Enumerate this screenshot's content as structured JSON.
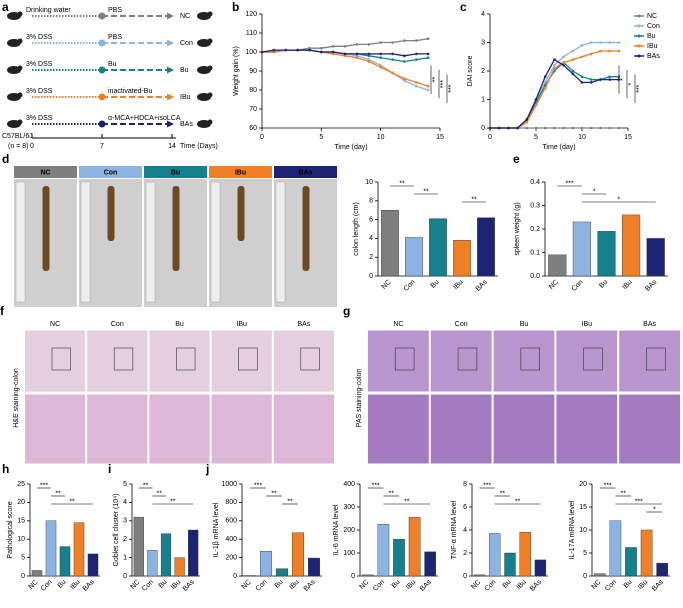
{
  "schematic": {
    "panel": "a",
    "strain": "C57BL/6J",
    "n": "(n = 8)",
    "days": [
      0,
      7,
      14
    ],
    "time_label": "Time (Days)",
    "rows": [
      {
        "start": "Drinking water",
        "treatment": "PBS",
        "group": "NC",
        "color": "#7f7f7f"
      },
      {
        "start": "3% DSS",
        "treatment": "PBS",
        "group": "Con",
        "color": "#8db3e2"
      },
      {
        "start": "3% DSS",
        "treatment": "Bu",
        "group": "Bu",
        "color": "#17808e"
      },
      {
        "start": "3% DSS",
        "treatment": "inactivated-Bu",
        "group": "IBu",
        "color": "#f07f26"
      },
      {
        "start": "3% DSS",
        "treatment": "α-MCA+HDCA+isoLCA",
        "group": "BAs",
        "color": "#1c2473"
      }
    ]
  },
  "colon_photos": {
    "panel": "d",
    "groups": [
      "NC",
      "Con",
      "Bu",
      "IBu",
      "BAs"
    ],
    "colors": [
      "#7f7f7f",
      "#8db3e2",
      "#17808e",
      "#f07f26",
      "#1c2473"
    ]
  },
  "he_staining": {
    "panel": "f",
    "label": "H&E staining-colon",
    "groups": [
      "NC",
      "Con",
      "Bu",
      "IBu",
      "BAs"
    ]
  },
  "pas_staining": {
    "panel": "g",
    "label": "PAS staining-colon",
    "groups": [
      "NC",
      "Con",
      "Bu",
      "IBu",
      "BAs"
    ]
  },
  "chart_data": [
    {
      "type": "line",
      "panel": "b",
      "x_label": "Time (day)",
      "y_label": "Weight gain (%)",
      "x": [
        0,
        1,
        2,
        3,
        4,
        5,
        6,
        7,
        8,
        9,
        10,
        11,
        12,
        13,
        14
      ],
      "xlim": [
        0,
        15
      ],
      "xticks": [
        0,
        5,
        10,
        15
      ],
      "ylim": [
        60,
        120
      ],
      "yticks": [
        60,
        70,
        80,
        90,
        100,
        110,
        120
      ],
      "series": [
        {
          "color": "#7f7f7f",
          "values": [
            100,
            100,
            101,
            101,
            102,
            102,
            103,
            103,
            104,
            104,
            105,
            105,
            106,
            106,
            107
          ]
        },
        {
          "color": "#8db3e2",
          "values": [
            100,
            100,
            101,
            101,
            101,
            100,
            100,
            99,
            98,
            96,
            93,
            89,
            85,
            82,
            80
          ]
        },
        {
          "color": "#17808e",
          "values": [
            100,
            100,
            101,
            101,
            101,
            100,
            100,
            99,
            99,
            98,
            97,
            96,
            95,
            96,
            97
          ]
        },
        {
          "color": "#f07f26",
          "values": [
            100,
            100,
            101,
            101,
            101,
            100,
            99,
            98,
            97,
            95,
            92,
            89,
            86,
            84,
            82
          ]
        },
        {
          "color": "#1c2473",
          "values": [
            100,
            101,
            101,
            101,
            101,
            100,
            100,
            99,
            99,
            99,
            99,
            99,
            98,
            99,
            99
          ]
        }
      ],
      "significance": [
        "**",
        "***",
        "***"
      ]
    },
    {
      "type": "line",
      "panel": "c",
      "x_label": "Time (day)",
      "y_label": "DAI score",
      "legend": true,
      "x": [
        0,
        1,
        2,
        3,
        4,
        5,
        6,
        7,
        8,
        9,
        10,
        11,
        12,
        13,
        14
      ],
      "xlim": [
        0,
        15
      ],
      "xticks": [
        0,
        5,
        10,
        15
      ],
      "ylim": [
        0,
        4
      ],
      "yticks": [
        0,
        1,
        2,
        3,
        4
      ],
      "series": [
        {
          "name": "NC",
          "color": "#7f7f7f",
          "values": [
            0,
            0,
            0,
            0,
            0,
            0,
            0,
            0,
            0,
            0,
            0,
            0,
            0,
            0,
            0
          ]
        },
        {
          "name": "Con",
          "color": "#8db3e2",
          "values": [
            0,
            0,
            0,
            0,
            0.3,
            1.0,
            1.6,
            2.2,
            2.5,
            2.7,
            2.9,
            3.0,
            3.0,
            3.0,
            3.0
          ]
        },
        {
          "name": "Bu",
          "color": "#17808e",
          "values": [
            0,
            0,
            0,
            0,
            0.3,
            0.9,
            1.5,
            2.0,
            2.3,
            2.0,
            1.8,
            1.7,
            1.7,
            1.8,
            1.8
          ]
        },
        {
          "name": "IBu",
          "color": "#f07f26",
          "values": [
            0,
            0,
            0,
            0,
            0.2,
            0.8,
            1.4,
            2.1,
            2.3,
            2.4,
            2.5,
            2.6,
            2.7,
            2.7,
            2.7
          ]
        },
        {
          "name": "BAs",
          "color": "#1c2473",
          "values": [
            0,
            0,
            0,
            0,
            0.3,
            1.0,
            1.8,
            2.4,
            2.2,
            1.9,
            1.6,
            1.6,
            1.7,
            1.7,
            1.7
          ]
        }
      ],
      "significance": [
        "*",
        "*",
        "***"
      ]
    },
    {
      "type": "bar",
      "y_label": "colon length (cm)",
      "categories": [
        "NC",
        "Con",
        "Bu",
        "IBu",
        "BAs"
      ],
      "values": [
        7.0,
        4.1,
        6.1,
        3.8,
        6.2
      ],
      "colors": [
        "#7f7f7f",
        "#8db3e2",
        "#17808e",
        "#f07f26",
        "#1c2473"
      ],
      "ylim": [
        0,
        10
      ],
      "yticks": [
        0,
        2,
        4,
        6,
        8,
        10
      ],
      "significance": [
        {
          "groups": [
            "NC",
            "Con"
          ],
          "label": "**"
        },
        {
          "groups": [
            "Con",
            "Bu"
          ],
          "label": "**"
        },
        {
          "groups": [
            "IBu",
            "BAs"
          ],
          "label": "**"
        }
      ]
    },
    {
      "type": "bar",
      "panel": "e",
      "y_label": "spleen weight (g)",
      "categories": [
        "NC",
        "Con",
        "Bu",
        "IBu",
        "BAs"
      ],
      "values": [
        0.09,
        0.23,
        0.19,
        0.26,
        0.16
      ],
      "colors": [
        "#7f7f7f",
        "#8db3e2",
        "#17808e",
        "#f07f26",
        "#1c2473"
      ],
      "ylim": [
        0,
        0.4
      ],
      "yticks": [
        {
          "value": 0,
          "label": "0.0"
        },
        0.1,
        0.2,
        0.3,
        0.4
      ],
      "significance": [
        {
          "groups": [
            "NC",
            "Con"
          ],
          "label": "***"
        },
        {
          "groups": [
            "Con",
            "Bu"
          ],
          "label": "*"
        },
        {
          "groups": [
            "Con",
            "BAs"
          ],
          "label": "*"
        }
      ]
    },
    {
      "type": "bar",
      "panel": "h",
      "y_label": "Pathological score",
      "categories": [
        "NC",
        "Con",
        "Bu",
        "IBu",
        "BAs"
      ],
      "values": [
        1.5,
        15,
        8,
        14.5,
        6
      ],
      "colors": [
        "#7f7f7f",
        "#8db3e2",
        "#17808e",
        "#f07f26",
        "#1c2473"
      ],
      "ylim": [
        0,
        25
      ],
      "yticks": [
        0,
        5,
        10,
        15,
        20,
        25
      ],
      "significance": [
        {
          "groups": [
            "NC",
            "Con"
          ],
          "label": "***"
        },
        {
          "groups": [
            "Con",
            "Bu"
          ],
          "label": "**"
        },
        {
          "groups": [
            "Con",
            "BAs"
          ],
          "label": "**"
        }
      ]
    },
    {
      "type": "bar",
      "panel": "i",
      "y_label": "Goblet cell cluster (10⁴)",
      "categories": [
        "NC",
        "Con",
        "Bu",
        "IBu",
        "BAs"
      ],
      "values": [
        3.2,
        1.4,
        2.3,
        1.0,
        2.5
      ],
      "colors": [
        "#7f7f7f",
        "#8db3e2",
        "#17808e",
        "#f07f26",
        "#1c2473"
      ],
      "ylim": [
        0,
        5
      ],
      "yticks": [
        0,
        1,
        2,
        3,
        4,
        5
      ],
      "significance": [
        {
          "groups": [
            "NC",
            "Con"
          ],
          "label": "**"
        },
        {
          "groups": [
            "Con",
            "Bu"
          ],
          "label": "**"
        },
        {
          "groups": [
            "Con",
            "BAs"
          ],
          "label": "**"
        }
      ]
    },
    {
      "type": "bar",
      "panel": "j",
      "y_label": "IL-1β mRNA level",
      "categories": [
        "NC",
        "Con",
        "Bu",
        "IBu",
        "BAs"
      ],
      "values": [
        5,
        270,
        80,
        470,
        195
      ],
      "colors": [
        "#7f7f7f",
        "#8db3e2",
        "#17808e",
        "#f07f26",
        "#1c2473"
      ],
      "ylim": [
        0,
        1000
      ],
      "yticks": [
        0,
        200,
        400,
        600,
        800,
        1000
      ],
      "significance": [
        {
          "groups": [
            "NC",
            "Con"
          ],
          "label": "***"
        },
        {
          "groups": [
            "Con",
            "Bu"
          ],
          "label": "**"
        },
        {
          "groups": [
            "Bu",
            "IBu"
          ],
          "label": "**"
        }
      ]
    },
    {
      "type": "bar",
      "y_label": "IL-6 mRNA level",
      "categories": [
        "NC",
        "Con",
        "Bu",
        "IBu",
        "BAs"
      ],
      "values": [
        5,
        225,
        160,
        255,
        105
      ],
      "colors": [
        "#7f7f7f",
        "#8db3e2",
        "#17808e",
        "#f07f26",
        "#1c2473"
      ],
      "ylim": [
        0,
        400
      ],
      "yticks": [
        0,
        100,
        200,
        300,
        400
      ],
      "significance": [
        {
          "groups": [
            "NC",
            "Con"
          ],
          "label": "***"
        },
        {
          "groups": [
            "Con",
            "Bu"
          ],
          "label": "**"
        },
        {
          "groups": [
            "Con",
            "BAs"
          ],
          "label": "**"
        }
      ]
    },
    {
      "type": "bar",
      "y_label": "TNF-α mRNA level",
      "categories": [
        "NC",
        "Con",
        "Bu",
        "IBu",
        "BAs"
      ],
      "values": [
        0.1,
        3.7,
        2.0,
        3.8,
        1.4
      ],
      "colors": [
        "#7f7f7f",
        "#8db3e2",
        "#17808e",
        "#f07f26",
        "#1c2473"
      ],
      "ylim": [
        0,
        8
      ],
      "yticks": [
        0,
        2,
        4,
        6,
        8
      ],
      "significance": [
        {
          "groups": [
            "NC",
            "Con"
          ],
          "label": "***"
        },
        {
          "groups": [
            "Con",
            "Bu"
          ],
          "label": "**"
        },
        {
          "groups": [
            "Con",
            "BAs"
          ],
          "label": "**"
        }
      ]
    },
    {
      "type": "bar",
      "y_label": "IL-17A mRNA level",
      "categories": [
        "NC",
        "Con",
        "Bu",
        "IBu",
        "BAs"
      ],
      "values": [
        0.5,
        12,
        6.2,
        10,
        2.8
      ],
      "colors": [
        "#7f7f7f",
        "#8db3e2",
        "#17808e",
        "#f07f26",
        "#1c2473"
      ],
      "ylim": [
        0,
        20
      ],
      "yticks": [
        0,
        5,
        10,
        15,
        20
      ],
      "significance": [
        {
          "groups": [
            "NC",
            "Con"
          ],
          "label": "***"
        },
        {
          "groups": [
            "Con",
            "Bu"
          ],
          "label": "**"
        },
        {
          "groups": [
            "Con",
            "BAs"
          ],
          "label": "***"
        },
        {
          "groups": [
            "IBu",
            "BAs"
          ],
          "label": "*"
        }
      ]
    }
  ]
}
